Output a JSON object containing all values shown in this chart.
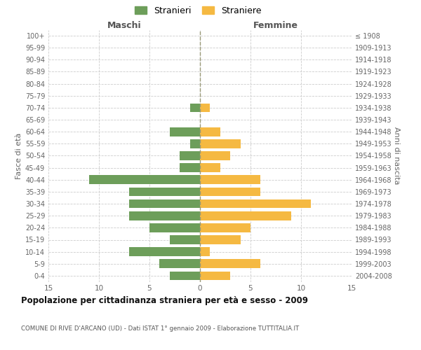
{
  "age_groups": [
    "100+",
    "95-99",
    "90-94",
    "85-89",
    "80-84",
    "75-79",
    "70-74",
    "65-69",
    "60-64",
    "55-59",
    "50-54",
    "45-49",
    "40-44",
    "35-39",
    "30-34",
    "25-29",
    "20-24",
    "15-19",
    "10-14",
    "5-9",
    "0-4"
  ],
  "birth_years": [
    "≤ 1908",
    "1909-1913",
    "1914-1918",
    "1919-1923",
    "1924-1928",
    "1929-1933",
    "1934-1938",
    "1939-1943",
    "1944-1948",
    "1949-1953",
    "1954-1958",
    "1959-1963",
    "1964-1968",
    "1969-1973",
    "1974-1978",
    "1979-1983",
    "1984-1988",
    "1989-1993",
    "1994-1998",
    "1999-2003",
    "2004-2008"
  ],
  "maschi": [
    0,
    0,
    0,
    0,
    0,
    0,
    1,
    0,
    3,
    1,
    2,
    2,
    11,
    7,
    7,
    7,
    5,
    3,
    7,
    4,
    3
  ],
  "femmine": [
    0,
    0,
    0,
    0,
    0,
    0,
    1,
    0,
    2,
    4,
    3,
    2,
    6,
    6,
    11,
    9,
    5,
    4,
    1,
    6,
    3
  ],
  "maschi_color": "#6d9e5a",
  "femmine_color": "#f5b942",
  "title": "Popolazione per cittadinanza straniera per età e sesso - 2009",
  "subtitle": "COMUNE DI RIVE D'ARCANO (UD) - Dati ISTAT 1° gennaio 2009 - Elaborazione TUTTITALIA.IT",
  "ylabel_left": "Fasce di età",
  "ylabel_right": "Anni di nascita",
  "xlabel_left": "Maschi",
  "xlabel_right": "Femmine",
  "legend_stranieri": "Stranieri",
  "legend_straniere": "Straniere",
  "xlim": 15,
  "background_color": "#ffffff",
  "grid_color": "#cccccc",
  "bar_height": 0.75
}
